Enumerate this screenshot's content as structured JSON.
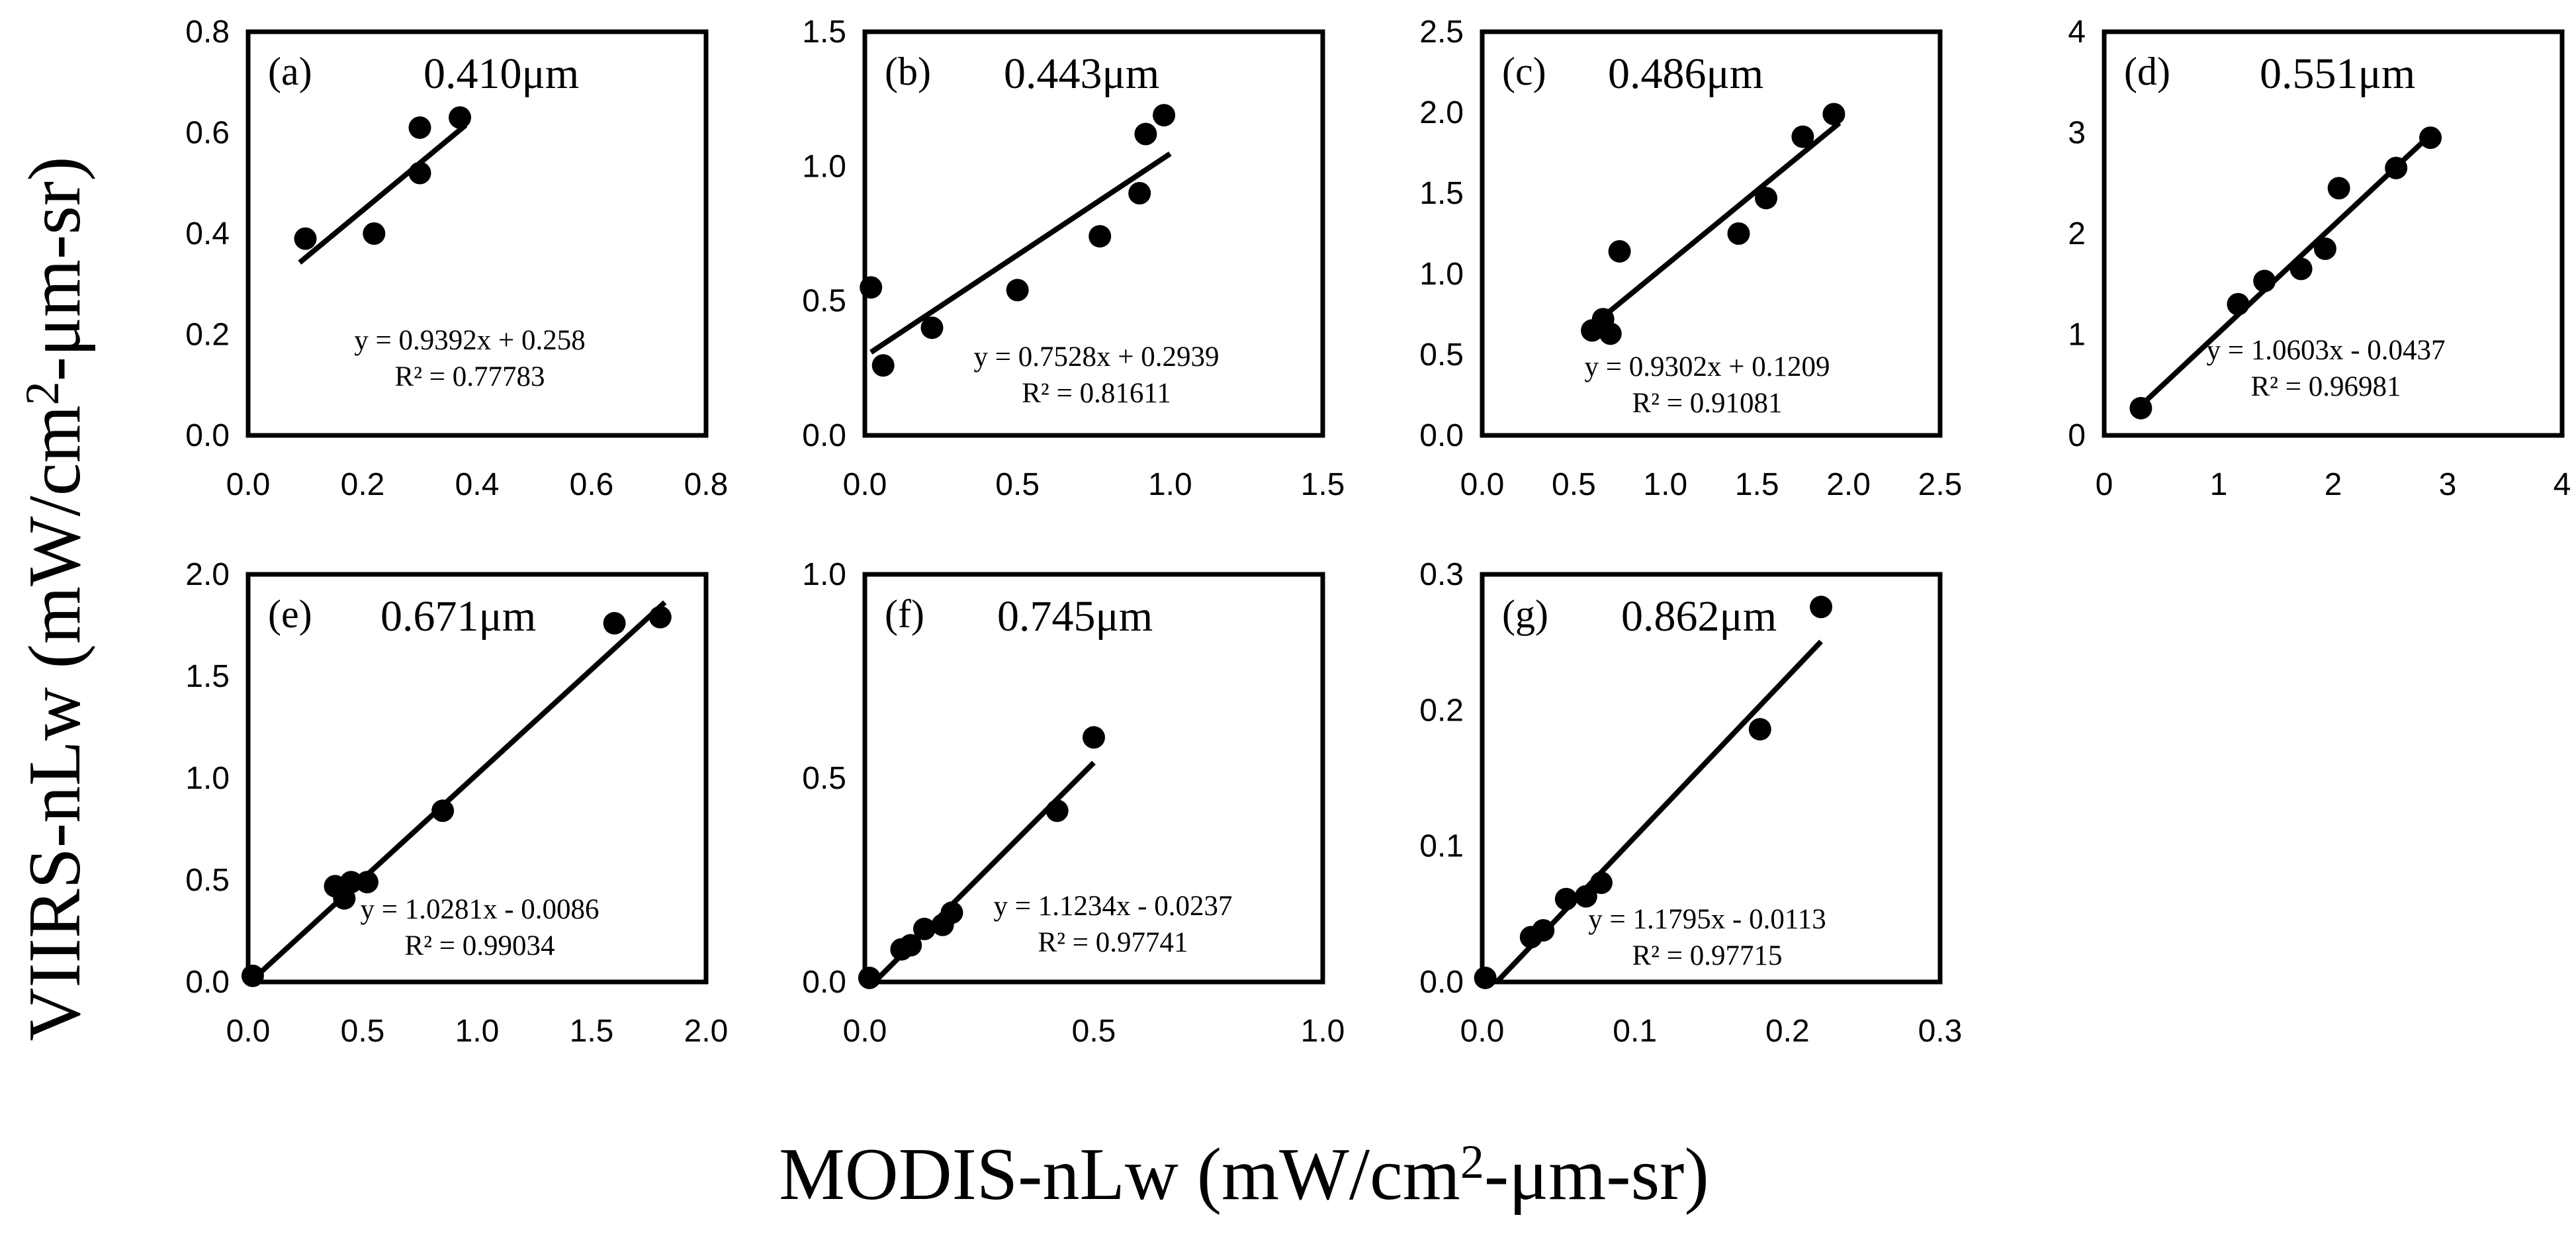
{
  "figure": {
    "global_ylabel": "VIIRS-nLw (mW/cm2-μm-sr)",
    "global_xlabel": "MODIS-nLw (mW/cm2-μm-sr)",
    "ylabel_prefix": "VIIRS-nLw (mW/cm",
    "xlabel_prefix": "MODIS-nLw (mW/cm",
    "label_superscript": "2",
    "label_suffix": "-μm-sr)"
  },
  "chart_data": [
    {
      "type": "scatter",
      "panel": "(a)",
      "title": "0.410μm",
      "equation": "y = 0.9392x + 0.258",
      "r2": "R² = 0.77783",
      "slope": 0.9392,
      "intercept": 0.258,
      "xlim": [
        0,
        0.8
      ],
      "ylim": [
        0,
        0.8
      ],
      "xticks": [
        0.0,
        0.2,
        0.4,
        0.6,
        0.8
      ],
      "yticks": [
        0.0,
        0.2,
        0.4,
        0.6,
        0.8
      ],
      "xtick_labels": [
        "0.0",
        "0.2",
        "0.4",
        "0.6",
        "0.8"
      ],
      "ytick_labels": [
        "0.0",
        "0.2",
        "0.4",
        "0.6",
        "0.8"
      ],
      "points": [
        [
          0.1,
          0.39
        ],
        [
          0.22,
          0.4
        ],
        [
          0.3,
          0.61
        ],
        [
          0.3,
          0.52
        ],
        [
          0.37,
          0.63
        ]
      ],
      "trend_x": [
        0.09,
        0.38
      ]
    },
    {
      "type": "scatter",
      "panel": "(b)",
      "title": "0.443μm",
      "equation": "y = 0.7528x + 0.2939",
      "r2": "R² = 0.81611",
      "slope": 0.7528,
      "intercept": 0.2939,
      "xlim": [
        0,
        1.5
      ],
      "ylim": [
        0,
        1.5
      ],
      "xticks": [
        0.0,
        0.5,
        1.0,
        1.5
      ],
      "yticks": [
        0.0,
        0.5,
        1.0,
        1.5
      ],
      "xtick_labels": [
        "0.0",
        "0.5",
        "1.0",
        "1.5"
      ],
      "ytick_labels": [
        "0.0",
        "0.5",
        "1.0",
        "1.5"
      ],
      "points": [
        [
          0.02,
          0.55
        ],
        [
          0.06,
          0.26
        ],
        [
          0.22,
          0.4
        ],
        [
          0.5,
          0.54
        ],
        [
          0.77,
          0.74
        ],
        [
          0.9,
          0.9
        ],
        [
          0.92,
          1.12
        ],
        [
          0.98,
          1.19
        ]
      ],
      "trend_x": [
        0.02,
        1.0
      ]
    },
    {
      "type": "scatter",
      "panel": "(c)",
      "title": "0.486μm",
      "equation": "y = 0.9302x + 0.1209",
      "r2": "R² = 0.91081",
      "slope": 0.9302,
      "intercept": 0.1209,
      "xlim": [
        0,
        2.5
      ],
      "ylim": [
        0,
        2.5
      ],
      "xticks": [
        0.0,
        0.5,
        1.0,
        1.5,
        2.0,
        2.5
      ],
      "yticks": [
        0.0,
        0.5,
        1.0,
        1.5,
        2.0,
        2.5
      ],
      "xtick_labels": [
        "0.0",
        "0.5",
        "1.0",
        "1.5",
        "2.0",
        "2.5"
      ],
      "ytick_labels": [
        "0.0",
        "0.5",
        "1.0",
        "1.5",
        "2.0",
        "2.5"
      ],
      "points": [
        [
          0.6,
          0.65
        ],
        [
          0.66,
          0.72
        ],
        [
          0.7,
          0.63
        ],
        [
          0.75,
          1.14
        ],
        [
          1.4,
          1.25
        ],
        [
          1.55,
          1.47
        ],
        [
          1.75,
          1.85
        ],
        [
          1.92,
          1.99
        ]
      ],
      "trend_x": [
        0.62,
        1.95
      ]
    },
    {
      "type": "scatter",
      "panel": "(d)",
      "title": "0.551μm",
      "equation": "y = 1.0603x - 0.0437",
      "r2": "R² = 0.96981",
      "slope": 1.0603,
      "intercept": -0.0437,
      "xlim": [
        0,
        4
      ],
      "ylim": [
        0,
        4
      ],
      "xticks": [
        0,
        1,
        2,
        3,
        4
      ],
      "yticks": [
        0,
        1,
        2,
        3,
        4
      ],
      "xtick_labels": [
        "0",
        "1",
        "2",
        "3",
        "4"
      ],
      "ytick_labels": [
        "0",
        "1",
        "2",
        "3",
        "4"
      ],
      "points": [
        [
          0.32,
          0.27
        ],
        [
          1.17,
          1.3
        ],
        [
          1.4,
          1.53
        ],
        [
          1.72,
          1.65
        ],
        [
          1.93,
          1.85
        ],
        [
          2.05,
          2.45
        ],
        [
          2.55,
          2.65
        ],
        [
          2.85,
          2.95
        ]
      ],
      "trend_x": [
        0.3,
        2.88
      ]
    },
    {
      "type": "scatter",
      "panel": "(e)",
      "title": "0.671μm",
      "equation": "y = 1.0281x - 0.0086",
      "r2": "R² = 0.99034",
      "slope": 1.0281,
      "intercept": -0.0086,
      "xlim": [
        0,
        2.0
      ],
      "ylim": [
        0,
        2.0
      ],
      "xticks": [
        0.0,
        0.5,
        1.0,
        1.5,
        2.0
      ],
      "yticks": [
        0.0,
        0.5,
        1.0,
        1.5,
        2.0
      ],
      "xtick_labels": [
        "0.0",
        "0.5",
        "1.0",
        "1.5",
        "2.0"
      ],
      "ytick_labels": [
        "0.0",
        "0.5",
        "1.0",
        "1.5",
        "2.0"
      ],
      "points": [
        [
          0.02,
          0.03
        ],
        [
          0.38,
          0.47
        ],
        [
          0.42,
          0.41
        ],
        [
          0.45,
          0.49
        ],
        [
          0.52,
          0.49
        ],
        [
          0.85,
          0.84
        ],
        [
          1.6,
          1.76
        ],
        [
          1.8,
          1.79
        ]
      ],
      "trend_x": [
        0.02,
        1.82
      ]
    },
    {
      "type": "scatter",
      "panel": "(f)",
      "title": "0.745μm",
      "equation": "y = 1.1234x - 0.0237",
      "r2": "R² = 0.97741",
      "slope": 1.1234,
      "intercept": -0.0237,
      "xlim": [
        0,
        1.0
      ],
      "ylim": [
        0,
        1.0
      ],
      "xticks": [
        0.0,
        0.5,
        1.0
      ],
      "yticks": [
        0.0,
        0.5,
        1.0
      ],
      "xtick_labels": [
        "0.0",
        "0.5",
        "1.0"
      ],
      "ytick_labels": [
        "0.0",
        "0.5",
        "1.0"
      ],
      "points": [
        [
          0.01,
          0.01
        ],
        [
          0.08,
          0.08
        ],
        [
          0.1,
          0.09
        ],
        [
          0.13,
          0.13
        ],
        [
          0.17,
          0.14
        ],
        [
          0.19,
          0.17
        ],
        [
          0.42,
          0.42
        ],
        [
          0.5,
          0.6
        ]
      ],
      "trend_x": [
        0.02,
        0.5
      ]
    },
    {
      "type": "scatter",
      "panel": "(g)",
      "title": "0.862μm",
      "equation": "y = 1.1795x - 0.0113",
      "r2": "R² = 0.97715",
      "slope": 1.1795,
      "intercept": -0.0113,
      "xlim": [
        0,
        0.3
      ],
      "ylim": [
        0,
        0.3
      ],
      "xticks": [
        0.0,
        0.1,
        0.2,
        0.3
      ],
      "yticks": [
        0.0,
        0.1,
        0.2,
        0.3
      ],
      "xtick_labels": [
        "0.0",
        "0.1",
        "0.2",
        "0.3"
      ],
      "ytick_labels": [
        "0.0",
        "0.1",
        "0.2",
        "0.3"
      ],
      "points": [
        [
          0.002,
          0.003
        ],
        [
          0.032,
          0.033
        ],
        [
          0.04,
          0.038
        ],
        [
          0.055,
          0.061
        ],
        [
          0.068,
          0.063
        ],
        [
          0.078,
          0.073
        ],
        [
          0.182,
          0.186
        ],
        [
          0.222,
          0.276
        ]
      ],
      "trend_x": [
        0.01,
        0.222
      ]
    }
  ]
}
